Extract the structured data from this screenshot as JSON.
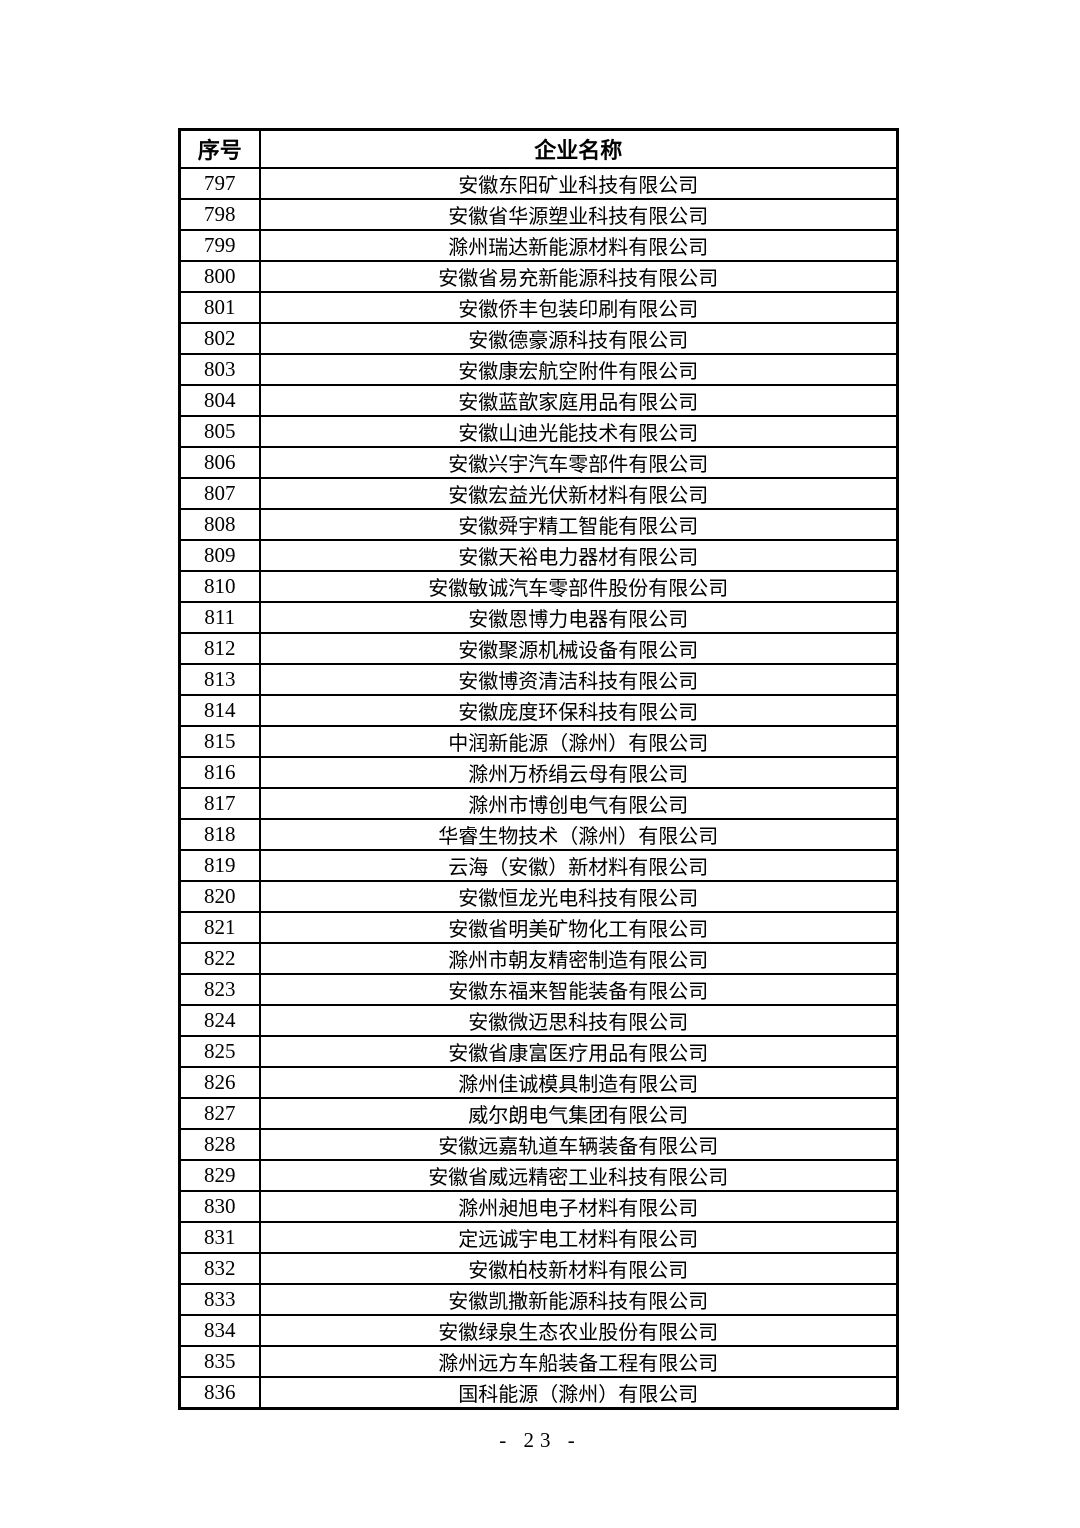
{
  "table": {
    "headers": [
      "序号",
      "企业名称"
    ],
    "rows": [
      {
        "no": "797",
        "name": "安徽东阳矿业科技有限公司"
      },
      {
        "no": "798",
        "name": "安徽省华源塑业科技有限公司"
      },
      {
        "no": "799",
        "name": "滁州瑞达新能源材料有限公司"
      },
      {
        "no": "800",
        "name": "安徽省易充新能源科技有限公司"
      },
      {
        "no": "801",
        "name": "安徽侨丰包装印刷有限公司"
      },
      {
        "no": "802",
        "name": "安徽德豪源科技有限公司"
      },
      {
        "no": "803",
        "name": "安徽康宏航空附件有限公司"
      },
      {
        "no": "804",
        "name": "安徽蓝歆家庭用品有限公司"
      },
      {
        "no": "805",
        "name": "安徽山迪光能技术有限公司"
      },
      {
        "no": "806",
        "name": "安徽兴宇汽车零部件有限公司"
      },
      {
        "no": "807",
        "name": "安徽宏益光伏新材料有限公司"
      },
      {
        "no": "808",
        "name": "安徽舜宇精工智能有限公司"
      },
      {
        "no": "809",
        "name": "安徽天裕电力器材有限公司"
      },
      {
        "no": "810",
        "name": "安徽敏诚汽车零部件股份有限公司"
      },
      {
        "no": "811",
        "name": "安徽恩博力电器有限公司"
      },
      {
        "no": "812",
        "name": "安徽聚源机械设备有限公司"
      },
      {
        "no": "813",
        "name": "安徽博资清洁科技有限公司"
      },
      {
        "no": "814",
        "name": "安徽庞度环保科技有限公司"
      },
      {
        "no": "815",
        "name": "中润新能源（滁州）有限公司"
      },
      {
        "no": "816",
        "name": "滁州万桥绢云母有限公司"
      },
      {
        "no": "817",
        "name": "滁州市博创电气有限公司"
      },
      {
        "no": "818",
        "name": "华睿生物技术（滁州）有限公司"
      },
      {
        "no": "819",
        "name": "云海（安徽）新材料有限公司"
      },
      {
        "no": "820",
        "name": "安徽恒龙光电科技有限公司"
      },
      {
        "no": "821",
        "name": "安徽省明美矿物化工有限公司"
      },
      {
        "no": "822",
        "name": "滁州市朝友精密制造有限公司"
      },
      {
        "no": "823",
        "name": "安徽东福来智能装备有限公司"
      },
      {
        "no": "824",
        "name": "安徽微迈思科技有限公司"
      },
      {
        "no": "825",
        "name": "安徽省康富医疗用品有限公司"
      },
      {
        "no": "826",
        "name": "滁州佳诚模具制造有限公司"
      },
      {
        "no": "827",
        "name": "威尔朗电气集团有限公司"
      },
      {
        "no": "828",
        "name": "安徽远嘉轨道车辆装备有限公司"
      },
      {
        "no": "829",
        "name": "安徽省威远精密工业科技有限公司"
      },
      {
        "no": "830",
        "name": "滁州昶旭电子材料有限公司"
      },
      {
        "no": "831",
        "name": "定远诚宇电工材料有限公司"
      },
      {
        "no": "832",
        "name": "安徽柏枝新材料有限公司"
      },
      {
        "no": "833",
        "name": "安徽凯撒新能源科技有限公司"
      },
      {
        "no": "834",
        "name": "安徽绿泉生态农业股份有限公司"
      },
      {
        "no": "835",
        "name": "滁州远方车船装备工程有限公司"
      },
      {
        "no": "836",
        "name": "国科能源（滁州）有限公司"
      }
    ]
  },
  "footer": {
    "page_number": "- 23 -"
  }
}
